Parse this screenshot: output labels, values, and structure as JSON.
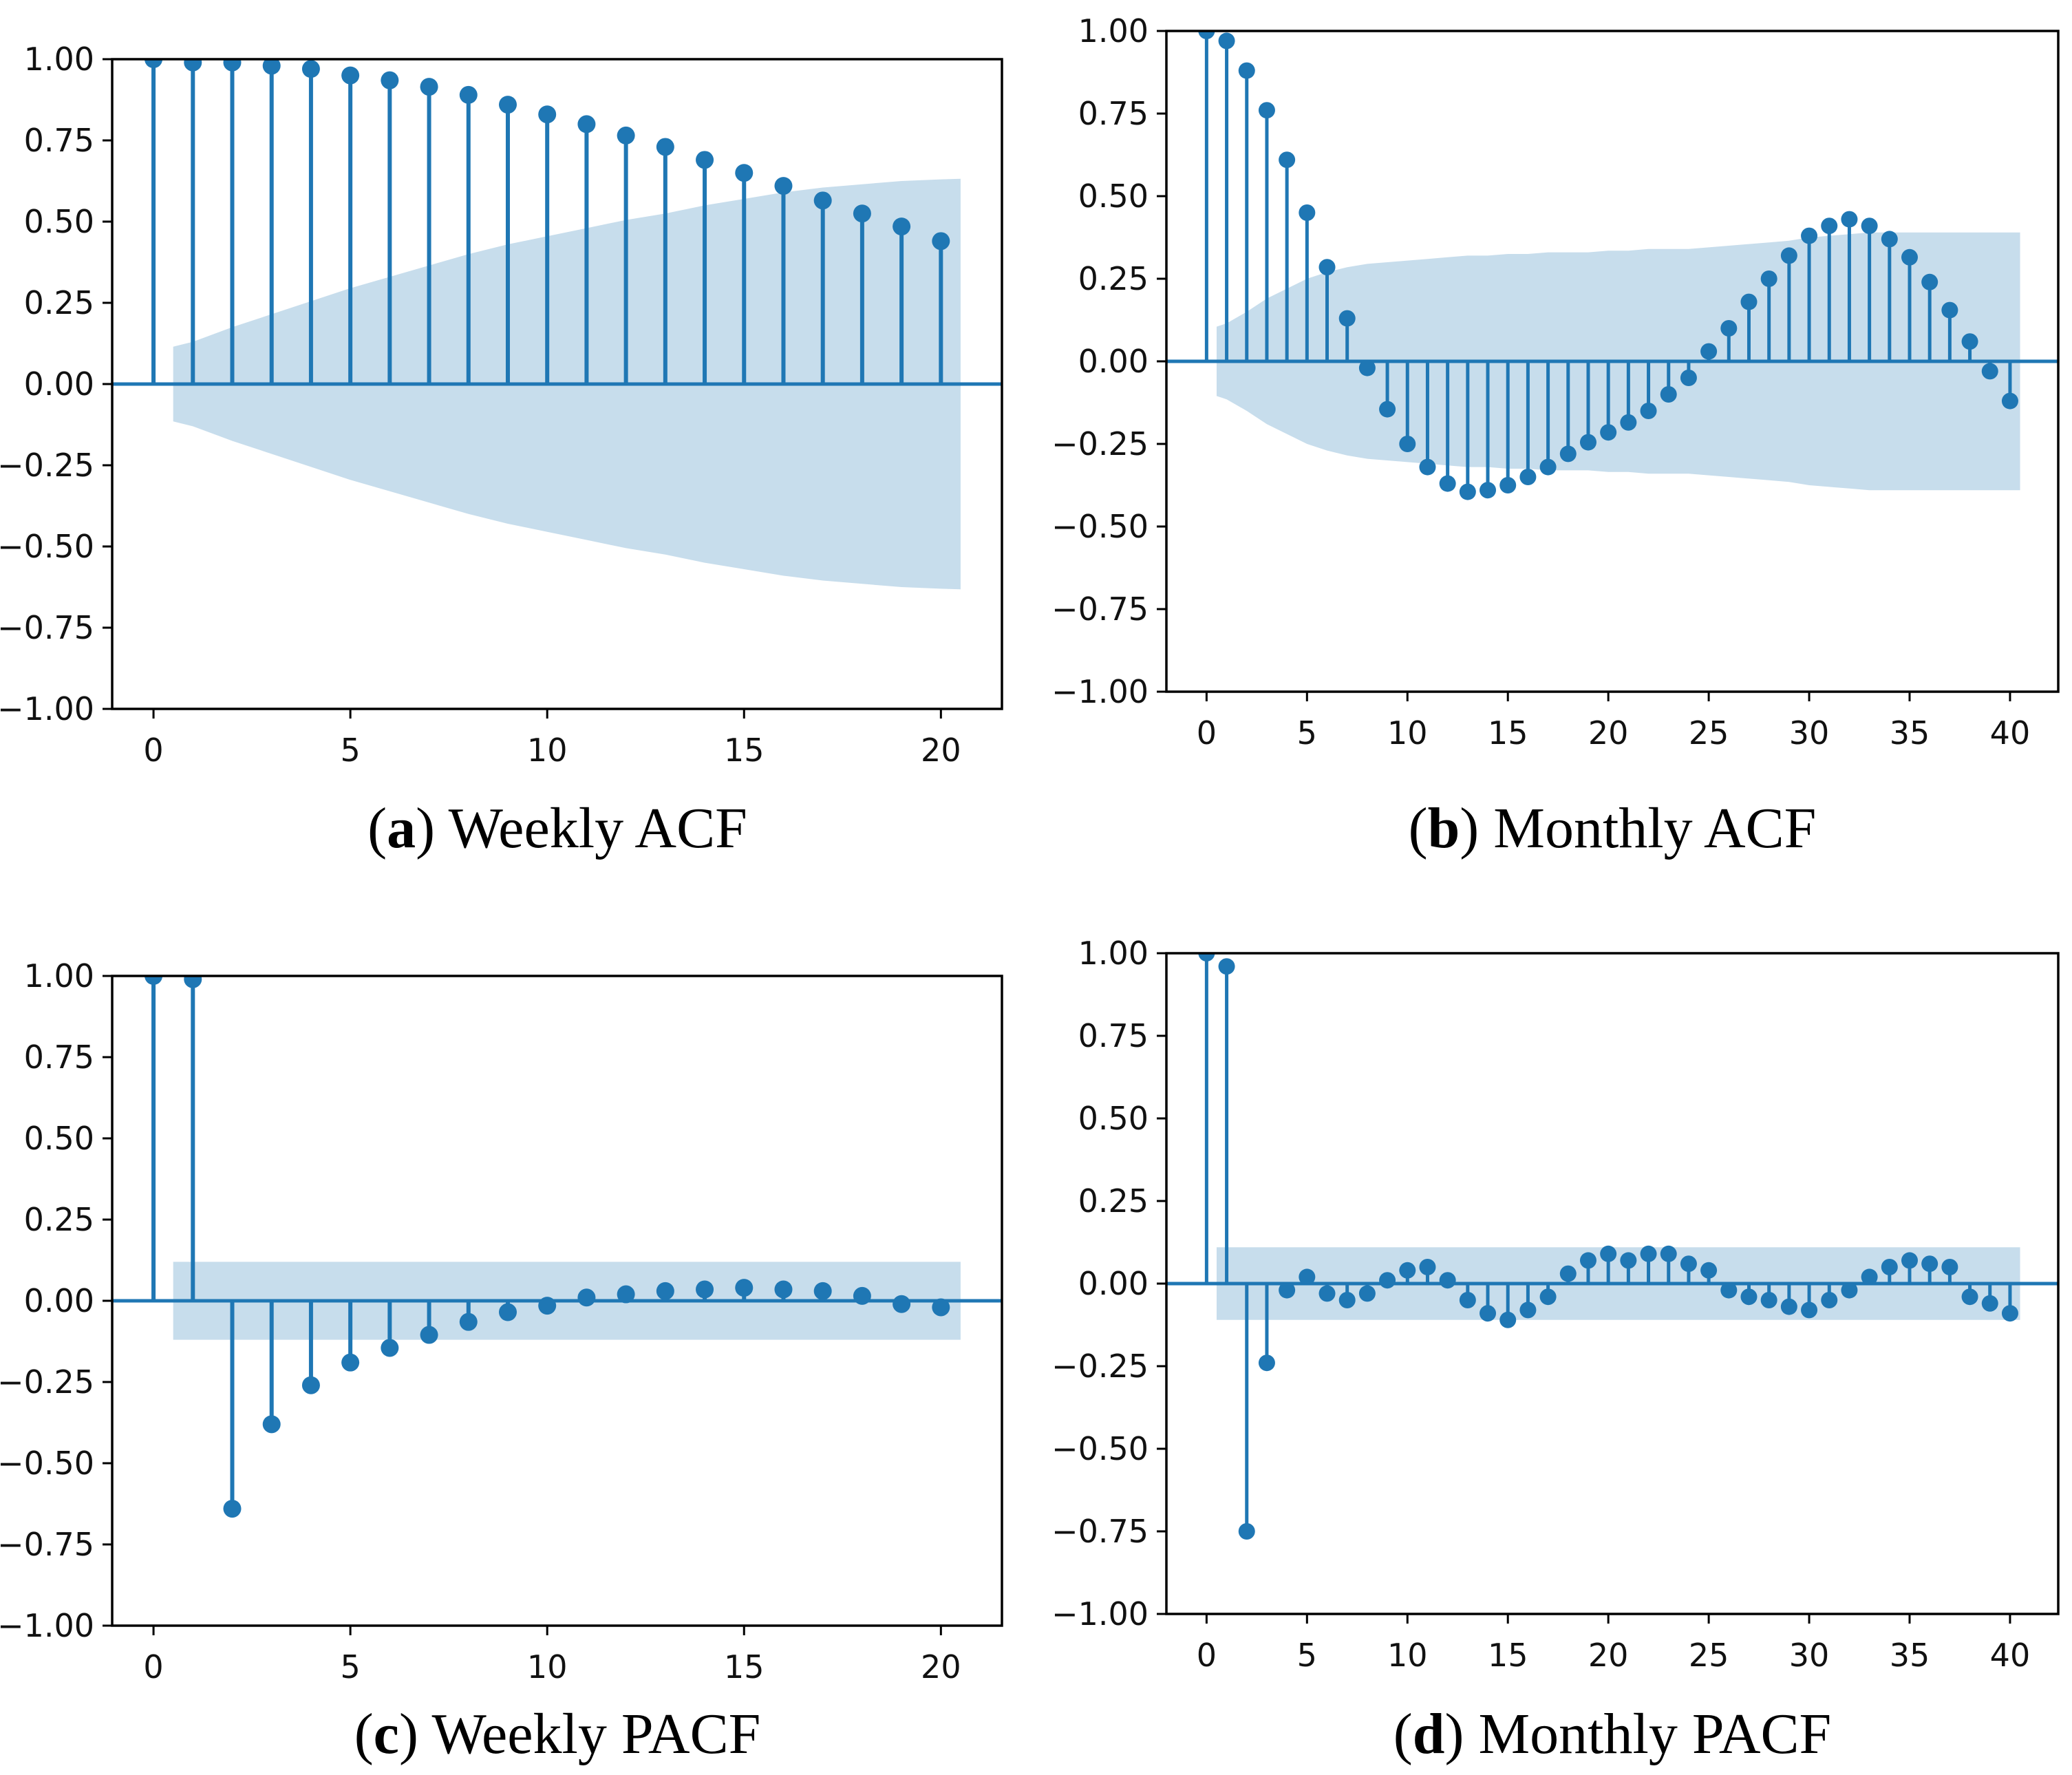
{
  "figure": {
    "type": "acf-pacf-grid",
    "background": "#ffffff",
    "colors": {
      "stem": "#1f77b4",
      "marker": "#1f77b4",
      "zero_line": "#1f77b4",
      "confidence_band": "rgba(31,119,180,0.25)",
      "axis": "#000000",
      "tick_label": "#111111"
    }
  },
  "chart_data": [
    {
      "id": "weekly-acf",
      "type": "stem",
      "title": "(a) Weekly ACF",
      "caption": {
        "open": "(",
        "letter": "a",
        "close": ") ",
        "label": "Weekly ACF"
      },
      "xlabel": "",
      "ylabel": "",
      "xlim": [
        -1.05,
        21.55
      ],
      "ylim": [
        -1,
        1
      ],
      "grid": false,
      "legend": "none",
      "xticks": [
        0,
        5,
        10,
        15,
        20
      ],
      "yticks": [
        1.0,
        0.75,
        0.5,
        0.25,
        0.0,
        -0.25,
        -0.5,
        -0.75,
        -1.0
      ],
      "lags": [
        0,
        1,
        2,
        3,
        4,
        5,
        6,
        7,
        8,
        9,
        10,
        11,
        12,
        13,
        14,
        15,
        16,
        17,
        18,
        19,
        20
      ],
      "values": [
        1.0,
        0.99,
        0.99,
        0.98,
        0.97,
        0.95,
        0.935,
        0.915,
        0.89,
        0.86,
        0.83,
        0.8,
        0.765,
        0.73,
        0.69,
        0.65,
        0.61,
        0.565,
        0.525,
        0.485,
        0.44
      ],
      "conf_band": {
        "x": [
          0.5,
          1,
          2,
          3,
          4,
          5,
          6,
          7,
          8,
          9,
          10,
          11,
          12,
          13,
          14,
          15,
          16,
          17,
          18,
          19,
          20,
          20.5
        ],
        "upper": [
          0.115,
          0.13,
          0.175,
          0.215,
          0.255,
          0.295,
          0.33,
          0.365,
          0.4,
          0.43,
          0.455,
          0.48,
          0.505,
          0.525,
          0.55,
          0.57,
          0.59,
          0.605,
          0.615,
          0.625,
          0.63,
          0.632
        ],
        "lower": [
          -0.115,
          -0.13,
          -0.175,
          -0.215,
          -0.255,
          -0.295,
          -0.33,
          -0.365,
          -0.4,
          -0.43,
          -0.455,
          -0.48,
          -0.505,
          -0.525,
          -0.55,
          -0.57,
          -0.59,
          -0.605,
          -0.615,
          -0.625,
          -0.63,
          -0.632
        ]
      }
    },
    {
      "id": "monthly-acf",
      "type": "stem",
      "title": "(b) Monthly ACF",
      "caption": {
        "open": "(",
        "letter": "b",
        "close": ") ",
        "label": "Monthly ACF"
      },
      "xlabel": "",
      "ylabel": "",
      "xlim": [
        -2.0,
        42.4
      ],
      "ylim": [
        -1,
        1
      ],
      "grid": false,
      "legend": "none",
      "xticks": [
        0,
        5,
        10,
        15,
        20,
        25,
        30,
        35,
        40
      ],
      "yticks": [
        1.0,
        0.75,
        0.5,
        0.25,
        0.0,
        -0.25,
        -0.5,
        -0.75,
        -1.0
      ],
      "lags": [
        0,
        1,
        2,
        3,
        4,
        5,
        6,
        7,
        8,
        9,
        10,
        11,
        12,
        13,
        14,
        15,
        16,
        17,
        18,
        19,
        20,
        21,
        22,
        23,
        24,
        25,
        26,
        27,
        28,
        29,
        30,
        31,
        32,
        33,
        34,
        35,
        36,
        37,
        38,
        39,
        40
      ],
      "values": [
        1.0,
        0.97,
        0.88,
        0.76,
        0.61,
        0.45,
        0.285,
        0.13,
        -0.02,
        -0.145,
        -0.25,
        -0.32,
        -0.37,
        -0.395,
        -0.39,
        -0.375,
        -0.35,
        -0.32,
        -0.28,
        -0.245,
        -0.215,
        -0.185,
        -0.15,
        -0.1,
        -0.05,
        0.03,
        0.1,
        0.18,
        0.25,
        0.32,
        0.38,
        0.41,
        0.43,
        0.41,
        0.37,
        0.315,
        0.24,
        0.155,
        0.06,
        -0.03,
        -0.12
      ],
      "conf_band": {
        "x": [
          0.5,
          1,
          2,
          3,
          4,
          5,
          6,
          7,
          8,
          9,
          10,
          11,
          12,
          13,
          14,
          15,
          16,
          17,
          18,
          19,
          20,
          21,
          22,
          23,
          24,
          25,
          26,
          27,
          28,
          29,
          30,
          31,
          32,
          33,
          34,
          35,
          36,
          37,
          38,
          39,
          40,
          40.5
        ],
        "upper": [
          0.105,
          0.115,
          0.15,
          0.19,
          0.22,
          0.25,
          0.27,
          0.285,
          0.295,
          0.3,
          0.305,
          0.31,
          0.315,
          0.32,
          0.32,
          0.325,
          0.325,
          0.33,
          0.33,
          0.33,
          0.335,
          0.335,
          0.34,
          0.34,
          0.34,
          0.345,
          0.35,
          0.355,
          0.36,
          0.365,
          0.375,
          0.38,
          0.385,
          0.39,
          0.39,
          0.39,
          0.39,
          0.39,
          0.39,
          0.39,
          0.39,
          0.39
        ],
        "lower": [
          -0.105,
          -0.115,
          -0.15,
          -0.19,
          -0.22,
          -0.25,
          -0.27,
          -0.285,
          -0.295,
          -0.3,
          -0.305,
          -0.31,
          -0.315,
          -0.32,
          -0.32,
          -0.325,
          -0.325,
          -0.33,
          -0.33,
          -0.33,
          -0.335,
          -0.335,
          -0.34,
          -0.34,
          -0.34,
          -0.345,
          -0.35,
          -0.355,
          -0.36,
          -0.365,
          -0.375,
          -0.38,
          -0.385,
          -0.39,
          -0.39,
          -0.39,
          -0.39,
          -0.39,
          -0.39,
          -0.39,
          -0.39,
          -0.39
        ]
      }
    },
    {
      "id": "weekly-pacf",
      "type": "stem",
      "title": "(c) Weekly PACF",
      "caption": {
        "open": "(",
        "letter": "c",
        "close": ") ",
        "label": "Weekly PACF"
      },
      "xlabel": "",
      "ylabel": "",
      "xlim": [
        -1.05,
        21.55
      ],
      "ylim": [
        -1,
        1
      ],
      "grid": false,
      "legend": "none",
      "xticks": [
        0,
        5,
        10,
        15,
        20
      ],
      "yticks": [
        1.0,
        0.75,
        0.5,
        0.25,
        0.0,
        -0.25,
        -0.5,
        -0.75,
        -1.0
      ],
      "lags": [
        0,
        1,
        2,
        3,
        4,
        5,
        6,
        7,
        8,
        9,
        10,
        11,
        12,
        13,
        14,
        15,
        16,
        17,
        18,
        19,
        20
      ],
      "values": [
        1.0,
        0.99,
        -0.64,
        -0.38,
        -0.26,
        -0.19,
        -0.145,
        -0.105,
        -0.065,
        -0.035,
        -0.015,
        0.01,
        0.02,
        0.03,
        0.035,
        0.04,
        0.035,
        0.03,
        0.015,
        -0.01,
        -0.02
      ],
      "conf_band": {
        "x": [
          0.5,
          20.5
        ],
        "upper": [
          0.12,
          0.12
        ],
        "lower": [
          -0.12,
          -0.12
        ]
      }
    },
    {
      "id": "monthly-pacf",
      "type": "stem",
      "title": "(d) Monthly PACF",
      "caption": {
        "open": "(",
        "letter": "d",
        "close": ") ",
        "label": "Monthly PACF"
      },
      "xlabel": "",
      "ylabel": "",
      "xlim": [
        -2.0,
        42.4
      ],
      "ylim": [
        -1,
        1
      ],
      "grid": false,
      "legend": "none",
      "xticks": [
        0,
        5,
        10,
        15,
        20,
        25,
        30,
        35,
        40
      ],
      "yticks": [
        1.0,
        0.75,
        0.5,
        0.25,
        0.0,
        -0.25,
        -0.5,
        -0.75,
        -1.0
      ],
      "lags": [
        0,
        1,
        2,
        3,
        4,
        5,
        6,
        7,
        8,
        9,
        10,
        11,
        12,
        13,
        14,
        15,
        16,
        17,
        18,
        19,
        20,
        21,
        22,
        23,
        24,
        25,
        26,
        27,
        28,
        29,
        30,
        31,
        32,
        33,
        34,
        35,
        36,
        37,
        38,
        39,
        40
      ],
      "values": [
        1.0,
        0.96,
        -0.75,
        -0.24,
        -0.02,
        0.02,
        -0.03,
        -0.05,
        -0.03,
        0.01,
        0.04,
        0.05,
        0.01,
        -0.05,
        -0.09,
        -0.11,
        -0.08,
        -0.04,
        0.03,
        0.07,
        0.09,
        0.07,
        0.09,
        0.09,
        0.06,
        0.04,
        -0.02,
        -0.04,
        -0.05,
        -0.07,
        -0.08,
        -0.05,
        -0.02,
        0.02,
        0.05,
        0.07,
        0.06,
        0.05,
        -0.04,
        -0.06,
        -0.09
      ],
      "conf_band": {
        "x": [
          0.5,
          40.5
        ],
        "upper": [
          0.11,
          0.11
        ],
        "lower": [
          -0.11,
          -0.11
        ]
      }
    }
  ]
}
